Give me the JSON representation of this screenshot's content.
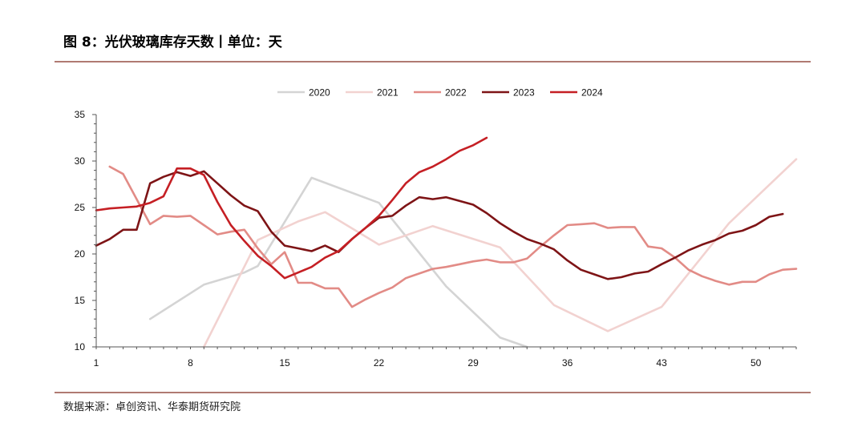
{
  "header": {
    "title": "图 8：光伏玻璃库存天数丨单位：天"
  },
  "footer": {
    "source": "数据来源：卓创资讯、华泰期货研究院"
  },
  "chart_data": {
    "type": "line",
    "title": "图 8：光伏玻璃库存天数丨单位：天",
    "xlabel": "",
    "ylabel": "",
    "xlim": [
      1,
      53
    ],
    "ylim": [
      10,
      35
    ],
    "xticks": [
      1,
      8,
      15,
      22,
      29,
      36,
      43,
      50
    ],
    "yticks": [
      10,
      15,
      20,
      25,
      30,
      35
    ],
    "grid": false,
    "legend": "top-center",
    "series": [
      {
        "name": "2020",
        "color": "#d4d4d4",
        "x": [
          5,
          9,
          12,
          13,
          17,
          22,
          27,
          31,
          33
        ],
        "y": [
          13,
          16.7,
          18,
          18.7,
          28.2,
          25.5,
          16.5,
          11,
          9.8
        ]
      },
      {
        "name": "2021",
        "color": "#f2d2d0",
        "x": [
          9,
          13,
          16,
          18,
          22,
          26,
          31,
          35,
          39,
          43,
          48,
          53
        ],
        "y": [
          9.8,
          21.5,
          23.5,
          24.5,
          21,
          23,
          20.7,
          14.5,
          11.7,
          14.3,
          23.3,
          30.2
        ]
      },
      {
        "name": "2022",
        "color": "#e28b86",
        "x": [
          2,
          3,
          5,
          6,
          7,
          8,
          9,
          10,
          11,
          12,
          13,
          14,
          15,
          16,
          17,
          18,
          19,
          20,
          21,
          22,
          23,
          24,
          25,
          26,
          27,
          28,
          29,
          30,
          31,
          32,
          33,
          34,
          35,
          36,
          37,
          38,
          39,
          40,
          41,
          42,
          43,
          44,
          45,
          46,
          47,
          48,
          49,
          50,
          51,
          52,
          53
        ],
        "y": [
          29.4,
          28.6,
          23.2,
          24.1,
          24,
          24.1,
          23.1,
          22.1,
          22.4,
          22.6,
          20.6,
          18.9,
          20.2,
          16.9,
          16.9,
          16.3,
          16.3,
          14.3,
          15.1,
          15.8,
          16.4,
          17.4,
          17.9,
          18.4,
          18.6,
          18.9,
          19.2,
          19.4,
          19.1,
          19.1,
          19.5,
          20.8,
          22,
          23.1,
          23.2,
          23.3,
          22.8,
          22.9,
          22.9,
          20.8,
          20.6,
          19.6,
          18.3,
          17.6,
          17.1,
          16.7,
          17,
          17,
          17.8,
          18.3,
          18.4
        ]
      },
      {
        "name": "2023",
        "color": "#7e1416",
        "x": [
          1,
          2,
          3,
          4,
          5,
          6,
          7,
          8,
          9,
          10,
          11,
          12,
          13,
          14,
          15,
          16,
          17,
          18,
          19,
          20,
          21,
          22,
          23,
          24,
          25,
          26,
          27,
          28,
          29,
          30,
          31,
          32,
          33,
          34,
          35,
          36,
          37,
          38,
          39,
          40,
          41,
          42,
          43,
          44,
          45,
          46,
          47,
          48,
          49,
          50,
          51,
          52
        ],
        "y": [
          20.9,
          21.6,
          22.6,
          22.6,
          27.6,
          28.3,
          28.8,
          28.4,
          28.9,
          27.6,
          26.3,
          25.2,
          24.6,
          22.4,
          20.9,
          20.6,
          20.3,
          20.9,
          20.2,
          21.6,
          22.8,
          23.9,
          24.1,
          25.2,
          26.1,
          25.9,
          26.1,
          25.7,
          25.3,
          24.4,
          23.3,
          22.4,
          21.6,
          21.1,
          20.5,
          19.3,
          18.3,
          17.8,
          17.3,
          17.5,
          17.9,
          18.1,
          18.9,
          19.6,
          20.4,
          21,
          21.5,
          22.2,
          22.5,
          23.1,
          24,
          24.3
        ]
      },
      {
        "name": "2024",
        "color": "#c51f24",
        "x": [
          1,
          2,
          3,
          4,
          5,
          6,
          7,
          8,
          9,
          10,
          11,
          12,
          13,
          14,
          15,
          16,
          17,
          18,
          19,
          20,
          21,
          22,
          23,
          24,
          25,
          26,
          27,
          28,
          29,
          30
        ],
        "y": [
          24.7,
          24.9,
          25,
          25.1,
          25.5,
          26.2,
          29.2,
          29.2,
          28.5,
          25.6,
          23.1,
          21.4,
          19.8,
          18.7,
          17.4,
          18,
          18.6,
          19.6,
          20.3,
          21.6,
          22.8,
          24.1,
          25.8,
          27.6,
          28.8,
          29.4,
          30.2,
          31.1,
          31.7,
          32.5
        ]
      }
    ]
  }
}
